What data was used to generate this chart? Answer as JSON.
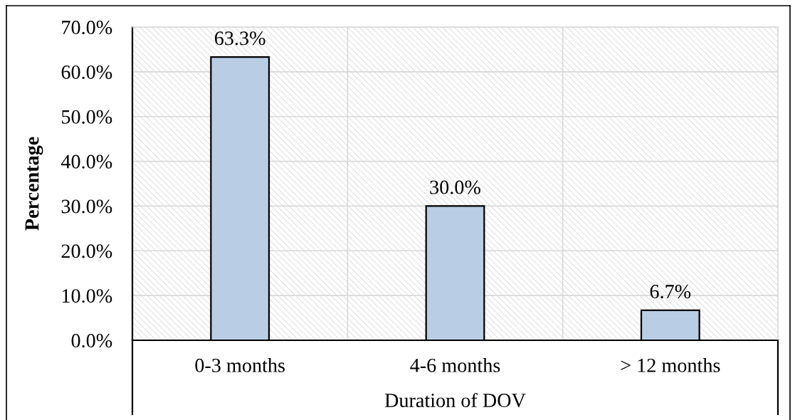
{
  "chart_data": {
    "type": "bar",
    "xlabel": "Duration of DOV",
    "ylabel": "Percentage",
    "categories": [
      "0-3 months",
      "4-6 months",
      "> 12 months"
    ],
    "values": [
      63.3,
      30.0,
      6.7
    ],
    "color": "#b9cde5",
    "value_labels": [
      "63.3%",
      "30.0%",
      "6.7%"
    ],
    "ylim": [
      0,
      70
    ],
    "yticks": [
      {
        "value": 0,
        "label": "0.0%"
      },
      {
        "value": 10,
        "label": "10.0%"
      },
      {
        "value": 20,
        "label": "20.0%"
      },
      {
        "value": 30,
        "label": "30.0%"
      },
      {
        "value": 40,
        "label": "40.0%"
      },
      {
        "value": 50,
        "label": "50.0%"
      },
      {
        "value": 60,
        "label": "60.0%"
      },
      {
        "value": 70,
        "label": "70.0%"
      }
    ],
    "grid": true
  }
}
